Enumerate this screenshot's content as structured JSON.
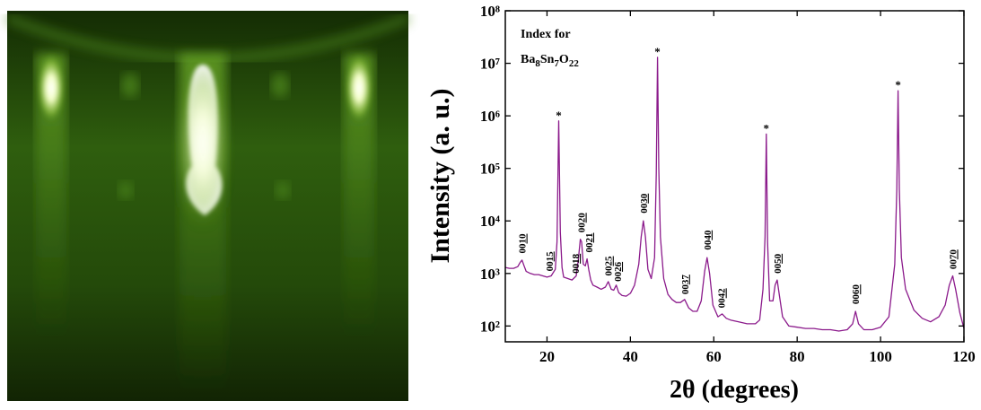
{
  "chart_data": {
    "type": "line",
    "log_y": true,
    "color": "#8b1a8b",
    "ylabel": "Intensity (a. u.)",
    "xlabel": "2θ (degrees)",
    "annotation": "Index for",
    "formula": [
      "Ba",
      "8",
      "Sn",
      "7",
      "O",
      "22"
    ],
    "xlim": [
      10,
      120
    ],
    "xticks": [
      20,
      40,
      60,
      80,
      100,
      120
    ],
    "ylim": [
      50,
      100000000
    ],
    "yticks": [
      {
        "value": 100,
        "label": "10²"
      },
      {
        "value": 1000,
        "label": "10³"
      },
      {
        "value": 10000,
        "label": "10⁴"
      },
      {
        "value": 100000,
        "label": "10⁵"
      },
      {
        "value": 1000000,
        "label": "10⁶"
      },
      {
        "value": 10000000,
        "label": "10⁷"
      },
      {
        "value": 100000000,
        "label": "10⁸"
      }
    ],
    "x": [
      10,
      11,
      12,
      13,
      13.5,
      14,
      14.5,
      15,
      16,
      17,
      18,
      19,
      20,
      21,
      22,
      22.4,
      22.8,
      23.2,
      23.6,
      24,
      25,
      26,
      27,
      27.5,
      28,
      28.3,
      28.7,
      29.2,
      29.6,
      30,
      30.5,
      31,
      32,
      33,
      34,
      34.7,
      35.4,
      36,
      36.6,
      37.2,
      38,
      39,
      40,
      41,
      42,
      42.6,
      43.1,
      43.6,
      44.2,
      45,
      45.8,
      46.2,
      46.5,
      46.8,
      47.2,
      48,
      49,
      50,
      51,
      52,
      53,
      54,
      55,
      56,
      57,
      57.8,
      58.4,
      59,
      59.8,
      61,
      62,
      63,
      64,
      66,
      68,
      70,
      71,
      71.8,
      72.3,
      72.6,
      72.9,
      73.4,
      74.2,
      74.7,
      75.2,
      75.8,
      76.5,
      78,
      80,
      82,
      84,
      86,
      88,
      90,
      92,
      93.3,
      94,
      94.7,
      96,
      98,
      100,
      102,
      103.4,
      103.9,
      104.2,
      104.5,
      105,
      106,
      108,
      110,
      112,
      114,
      115.5,
      116.5,
      117.3,
      118,
      119,
      120
    ],
    "values": [
      1300,
      1250,
      1250,
      1350,
      1600,
      1800,
      1400,
      1100,
      1000,
      950,
      950,
      900,
      850,
      900,
      1200,
      4000,
      800000,
      6000,
      1300,
      850,
      800,
      750,
      900,
      1800,
      4500,
      4000,
      1500,
      1400,
      1900,
      1200,
      750,
      600,
      550,
      500,
      550,
      700,
      500,
      480,
      600,
      430,
      380,
      370,
      420,
      600,
      1500,
      5000,
      10000,
      5000,
      1200,
      800,
      2000,
      80000,
      13000000,
      100000,
      5000,
      800,
      400,
      320,
      280,
      280,
      320,
      220,
      190,
      190,
      300,
      1100,
      2000,
      1000,
      250,
      150,
      170,
      140,
      130,
      120,
      110,
      110,
      130,
      500,
      5000,
      450000,
      4000,
      300,
      300,
      600,
      750,
      350,
      150,
      100,
      95,
      90,
      90,
      85,
      85,
      80,
      85,
      110,
      190,
      110,
      85,
      85,
      95,
      150,
      1500,
      40000,
      3000000,
      40000,
      2000,
      500,
      200,
      140,
      120,
      150,
      250,
      600,
      900,
      500,
      180,
      90
    ],
    "peak_labels": [
      {
        "x": 14,
        "y": 2400,
        "prefix": "00",
        "index": "10"
      },
      {
        "x": 20.5,
        "y": 1100,
        "prefix": "00",
        "index": "15"
      },
      {
        "x": 26.8,
        "y": 1000,
        "prefix": "00",
        "index": "18"
      },
      {
        "x": 28.2,
        "y": 6000,
        "prefix": "00",
        "index": "20"
      },
      {
        "x": 30.0,
        "y": 2500,
        "prefix": "00",
        "index": "21"
      },
      {
        "x": 34.7,
        "y": 900,
        "prefix": "00",
        "index": "25"
      },
      {
        "x": 36.9,
        "y": 700,
        "prefix": "00",
        "index": "26"
      },
      {
        "x": 43.1,
        "y": 14000,
        "prefix": "00",
        "index": "30"
      },
      {
        "x": 53,
        "y": 400,
        "prefix": "00",
        "index": "37"
      },
      {
        "x": 58.4,
        "y": 2800,
        "prefix": "00",
        "index": "40"
      },
      {
        "x": 61.8,
        "y": 220,
        "prefix": "00",
        "index": "42"
      },
      {
        "x": 75.2,
        "y": 1000,
        "prefix": "00",
        "index": "50"
      },
      {
        "x": 94,
        "y": 260,
        "prefix": "00",
        "index": "60"
      },
      {
        "x": 117.3,
        "y": 1200,
        "prefix": "00",
        "index": "70"
      }
    ],
    "stars": [
      {
        "x": 22.8,
        "y": 800000,
        "label": "*"
      },
      {
        "x": 46.5,
        "y": 13000000,
        "label": "*"
      },
      {
        "x": 72.6,
        "y": 450000,
        "label": "*"
      },
      {
        "x": 104.2,
        "y": 3000000,
        "label": "*"
      }
    ]
  }
}
